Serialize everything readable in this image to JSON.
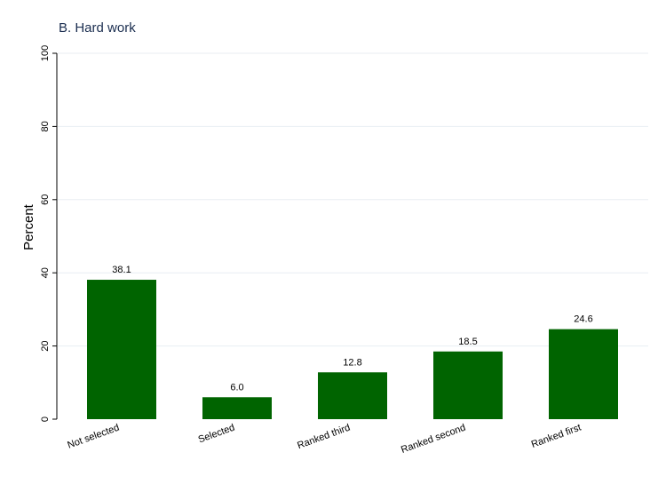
{
  "chart_data": {
    "type": "bar",
    "title": "B. Hard work",
    "xlabel": "",
    "ylabel": "Percent",
    "ylim": [
      0,
      100
    ],
    "yticks": [
      0,
      20,
      40,
      60,
      80,
      100
    ],
    "grid": true,
    "legend": "none",
    "bar_color": "#006400",
    "categories": [
      "Not selected",
      "Selected",
      "Ranked third",
      "Ranked second",
      "Ranked first"
    ],
    "values": [
      38.1,
      6.0,
      12.8,
      18.5,
      24.6
    ],
    "value_labels": [
      "38.1",
      "6.0",
      "12.8",
      "18.5",
      "24.6"
    ]
  }
}
